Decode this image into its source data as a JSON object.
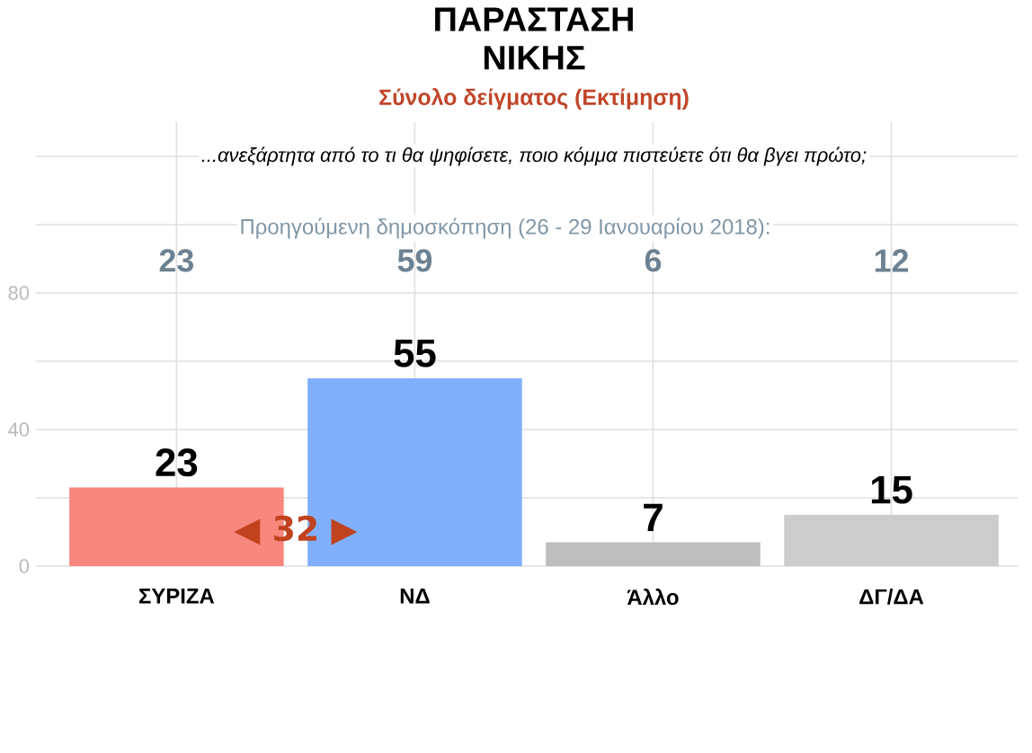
{
  "chart_data": {
    "type": "bar",
    "title": "ΠΑΡΑΣΤΑΣΗ ΝΙΚΗΣ",
    "subtitle": "Σύνολο δείγματος   (Εκτίμηση)",
    "categories": [
      "ΣΥΡΙΖΑ",
      "ΝΔ",
      "Άλλο",
      "ΔΓ/ΔΑ"
    ],
    "values": [
      23,
      55,
      7,
      15
    ],
    "colors": [
      "#f8877d",
      "#80b0fc",
      "#bdbdbd",
      "#cccccc"
    ],
    "ylim": [
      0,
      130
    ],
    "yticks": [
      0,
      {
        "value": 20,
        "label": null
      },
      40,
      {
        "value": 60,
        "label": null
      },
      80,
      {
        "value": 100,
        "label": null
      },
      {
        "value": 120,
        "label": null
      }
    ],
    "grid": true,
    "data_labels": true,
    "annotations": [
      "...ανεξάρτητα από το τι θα ψηφίσετε, ποιο κόμμα πιστεύετε ότι θα βγει πρώτο;",
      "Προηγούμενη δημοσκόπηση (26 - 29 Ιανουαρίου 2018):",
      "◀ 32 ▶",
      "23",
      "59",
      "6",
      "12"
    ]
  }
}
